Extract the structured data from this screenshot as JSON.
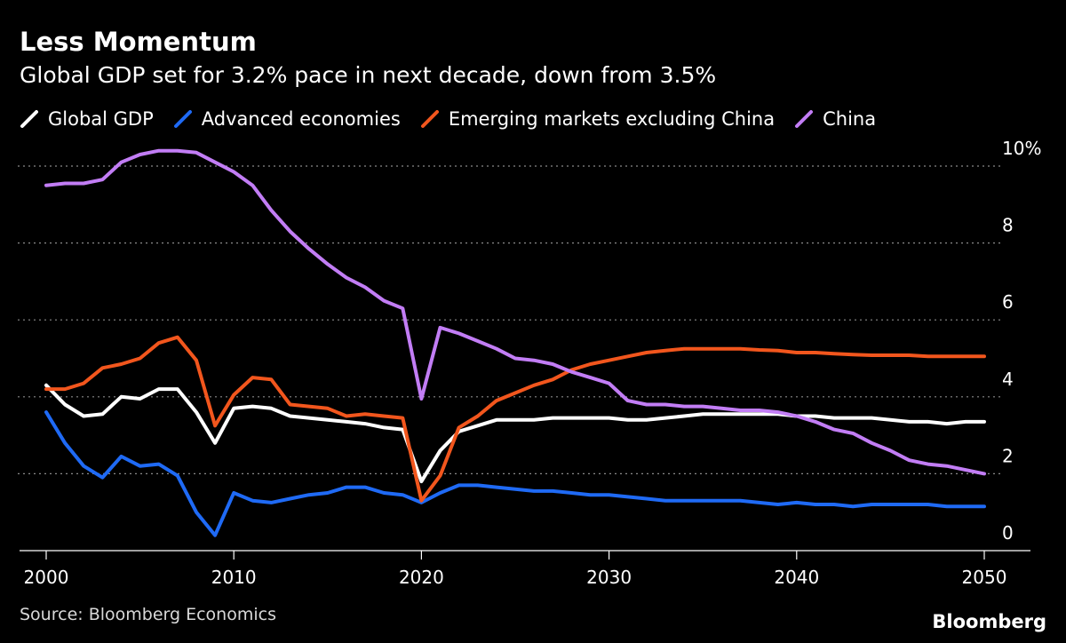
{
  "chart_data": {
    "type": "line",
    "title": "Less Momentum",
    "subtitle": "Global GDP set for 3.2% pace in next decade, down from 3.5%",
    "xlabel": "",
    "ylabel": "",
    "xlim": [
      2000,
      2050
    ],
    "ylim": [
      0,
      10
    ],
    "x_ticks": [
      2000,
      2010,
      2020,
      2030,
      2040,
      2050
    ],
    "y_ticks": [
      0,
      2,
      4,
      6,
      8,
      10
    ],
    "y_tick_labels": [
      "0",
      "2",
      "4",
      "6",
      "8",
      "10%"
    ],
    "grid": "horizontal dotted",
    "legend_position": "top-left",
    "x": [
      2000,
      2001,
      2002,
      2003,
      2004,
      2005,
      2006,
      2007,
      2008,
      2009,
      2010,
      2011,
      2012,
      2013,
      2014,
      2015,
      2016,
      2017,
      2018,
      2019,
      2020,
      2021,
      2022,
      2023,
      2024,
      2025,
      2026,
      2027,
      2028,
      2029,
      2030,
      2031,
      2032,
      2033,
      2034,
      2035,
      2036,
      2037,
      2038,
      2039,
      2040,
      2041,
      2042,
      2043,
      2044,
      2045,
      2046,
      2047,
      2048,
      2049,
      2050
    ],
    "series": [
      {
        "name": "Global GDP",
        "color": "#ffffff",
        "values": [
          4.3,
          3.8,
          3.5,
          3.55,
          4.0,
          3.95,
          4.2,
          4.2,
          3.6,
          2.8,
          3.7,
          3.75,
          3.7,
          3.5,
          3.45,
          3.4,
          3.35,
          3.3,
          3.2,
          3.15,
          1.8,
          2.6,
          3.1,
          3.25,
          3.4,
          3.4,
          3.4,
          3.45,
          3.45,
          3.45,
          3.45,
          3.4,
          3.4,
          3.45,
          3.5,
          3.55,
          3.55,
          3.55,
          3.55,
          3.55,
          3.5,
          3.5,
          3.45,
          3.45,
          3.45,
          3.4,
          3.35,
          3.35,
          3.3,
          3.35,
          3.35
        ]
      },
      {
        "name": "Advanced economies",
        "color": "#1f6af5",
        "values": [
          3.6,
          2.8,
          2.2,
          1.9,
          2.45,
          2.2,
          2.25,
          1.95,
          1.0,
          0.4,
          1.5,
          1.3,
          1.25,
          1.35,
          1.45,
          1.5,
          1.65,
          1.65,
          1.5,
          1.45,
          1.25,
          1.5,
          1.7,
          1.7,
          1.65,
          1.6,
          1.55,
          1.55,
          1.5,
          1.45,
          1.45,
          1.4,
          1.35,
          1.3,
          1.3,
          1.3,
          1.3,
          1.3,
          1.25,
          1.2,
          1.25,
          1.2,
          1.2,
          1.15,
          1.2,
          1.2,
          1.2,
          1.2,
          1.15,
          1.15,
          1.15
        ]
      },
      {
        "name": "Emerging markets excluding China",
        "color": "#f2561d",
        "values": [
          4.2,
          4.2,
          4.35,
          4.75,
          4.85,
          5.0,
          5.4,
          5.55,
          4.95,
          3.25,
          4.05,
          4.5,
          4.45,
          3.8,
          3.75,
          3.7,
          3.5,
          3.55,
          3.5,
          3.45,
          1.3,
          1.95,
          3.2,
          3.5,
          3.9,
          4.1,
          4.3,
          4.45,
          4.7,
          4.85,
          4.95,
          5.05,
          5.15,
          5.2,
          5.25,
          5.25,
          5.25,
          5.25,
          5.22,
          5.2,
          5.15,
          5.15,
          5.12,
          5.1,
          5.08,
          5.08,
          5.08,
          5.05,
          5.05,
          5.05,
          5.05
        ]
      },
      {
        "name": "China",
        "color": "#c27df5",
        "values": [
          9.5,
          9.55,
          9.55,
          9.65,
          10.1,
          10.3,
          10.4,
          10.4,
          10.35,
          10.1,
          9.85,
          9.5,
          8.85,
          8.3,
          7.85,
          7.45,
          7.1,
          6.85,
          6.5,
          6.3,
          3.95,
          5.8,
          5.65,
          5.45,
          5.25,
          5.0,
          4.95,
          4.85,
          4.65,
          4.5,
          4.35,
          3.9,
          3.8,
          3.8,
          3.75,
          3.75,
          3.7,
          3.65,
          3.65,
          3.6,
          3.5,
          3.35,
          3.15,
          3.05,
          2.8,
          2.6,
          2.35,
          2.25,
          2.2,
          2.1,
          2.0
        ]
      }
    ]
  },
  "source": "Source: Bloomberg Economics",
  "brand": "Bloomberg"
}
